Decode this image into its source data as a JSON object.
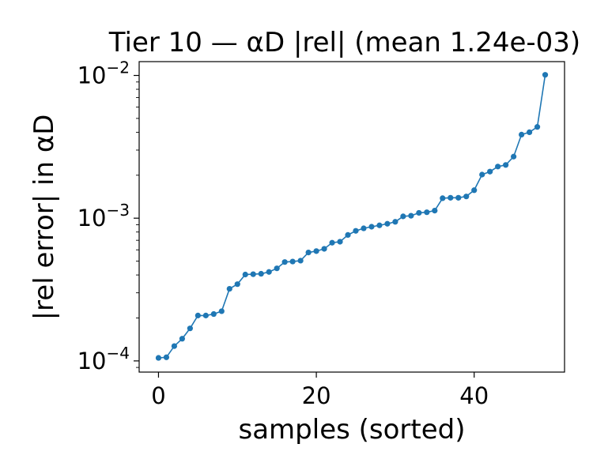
{
  "chart_data": {
    "type": "line",
    "title": "Tier 10 — αD |rel| (mean 1.24e-03)",
    "xlabel": "samples (sorted)",
    "ylabel": "|rel error| in αD",
    "yscale": "log",
    "xlim": [
      -2.45,
      51.45
    ],
    "ylim": [
      8.35e-05,
      0.0125
    ],
    "x_ticks": [
      0,
      20,
      40
    ],
    "x_tick_labels": [
      "0",
      "20",
      "40"
    ],
    "y_ticks": [
      0.0001,
      0.001,
      0.01
    ],
    "y_tick_labels": [
      {
        "base": "10",
        "exp": "−4"
      },
      {
        "base": "10",
        "exp": "−3"
      },
      {
        "base": "10",
        "exp": "−2"
      }
    ],
    "grid": false,
    "legend": false,
    "series_color": "#1f77b4",
    "x": [
      0,
      1,
      2,
      3,
      4,
      5,
      6,
      7,
      8,
      9,
      10,
      11,
      12,
      13,
      14,
      15,
      16,
      17,
      18,
      19,
      20,
      21,
      22,
      23,
      24,
      25,
      26,
      27,
      28,
      29,
      30,
      31,
      32,
      33,
      34,
      35,
      36,
      37,
      38,
      39,
      40,
      41,
      42,
      43,
      44,
      45,
      46,
      47,
      48,
      49
    ],
    "values": [
      0.000105,
      0.000106,
      0.000127,
      0.000143,
      0.000169,
      0.000208,
      0.000208,
      0.000213,
      0.000223,
      0.00032,
      0.000345,
      0.000403,
      0.000405,
      0.000408,
      0.00042,
      0.000445,
      0.000493,
      0.000497,
      0.000504,
      0.000575,
      0.000588,
      0.00061,
      0.000673,
      0.000684,
      0.000763,
      0.000815,
      0.000849,
      0.000871,
      0.000891,
      0.000914,
      0.000943,
      0.00103,
      0.00104,
      0.00109,
      0.0011,
      0.00113,
      0.00138,
      0.00139,
      0.00139,
      0.00142,
      0.00157,
      0.00202,
      0.00212,
      0.0023,
      0.00236,
      0.0027,
      0.00385,
      0.004,
      0.00436,
      0.0101
    ]
  }
}
